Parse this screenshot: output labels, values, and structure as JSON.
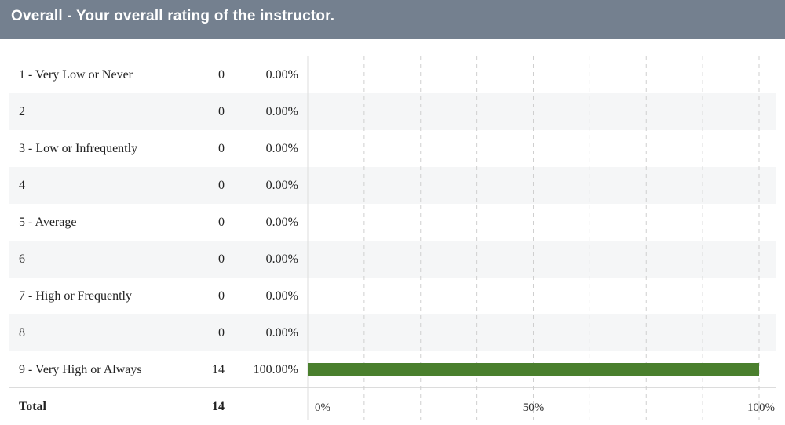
{
  "header": {
    "title": "Overall - Your overall rating of the instructor."
  },
  "chart_data": {
    "type": "bar",
    "orientation": "horizontal",
    "categories": [
      "1 - Very Low or Never",
      "2",
      "3 - Low or Infrequently",
      "4",
      "5 - Average",
      "6",
      "7 - High or Frequently",
      "8",
      "9 - Very High or Always"
    ],
    "counts": [
      "0",
      "0",
      "0",
      "0",
      "0",
      "0",
      "0",
      "0",
      "14"
    ],
    "percent_labels": [
      "0.00%",
      "0.00%",
      "0.00%",
      "0.00%",
      "0.00%",
      "0.00%",
      "0.00%",
      "0.00%",
      "100.00%"
    ],
    "values": [
      0,
      0,
      0,
      0,
      0,
      0,
      0,
      0,
      100
    ],
    "xlim": [
      0,
      100
    ],
    "x_tick_labels": [
      "0%",
      "50%",
      "100%"
    ],
    "bar_color": "#4a7f2d",
    "grid": true
  },
  "total": {
    "label": "Total",
    "count": "14"
  }
}
